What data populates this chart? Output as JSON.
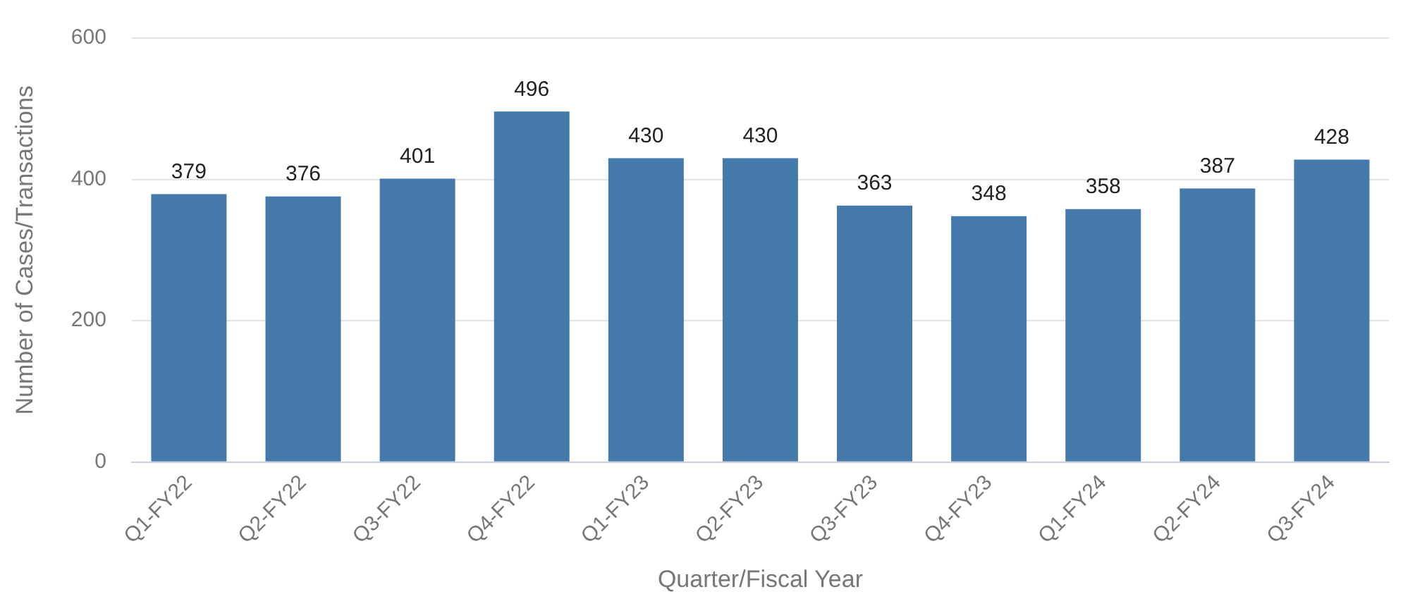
{
  "chart_data": {
    "type": "bar",
    "xlabel": "Quarter/Fiscal Year",
    "ylabel": "Number of Cases/Transactions",
    "categories": [
      "Q1-FY22",
      "Q2-FY22",
      "Q3-FY22",
      "Q4-FY22",
      "Q1-FY23",
      "Q2-FY23",
      "Q3-FY23",
      "Q4-FY23",
      "Q1-FY24",
      "Q2-FY24",
      "Q3-FY24"
    ],
    "values": [
      379,
      376,
      401,
      496,
      430,
      430,
      363,
      348,
      358,
      387,
      428
    ],
    "color": "#4479aa",
    "ylim": [
      0,
      600
    ],
    "yticks": [
      0,
      200,
      400,
      600
    ],
    "grid": "y",
    "legend": false,
    "data_labels": true
  }
}
